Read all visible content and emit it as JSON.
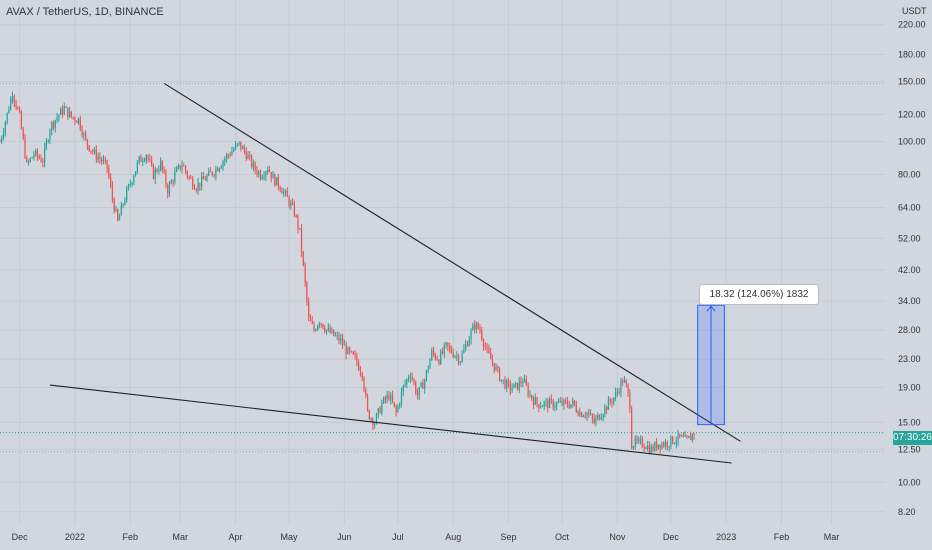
{
  "chart_title": "AVAX / TetherUS, 1D, BINANCE",
  "chart_data": {
    "type": "candlestick",
    "title": "AVAX / TetherUS, 1D, BINANCE",
    "y_unit": "USDT",
    "y_scale": "log",
    "ylim": [
      7.5,
      260
    ],
    "y_ticks": [
      "220.00",
      "180.00",
      "150.00",
      "120.00",
      "100.00",
      "80.00",
      "64.00",
      "52.00",
      "42.00",
      "34.00",
      "28.00",
      "23.00",
      "19.00",
      "15.00",
      "12.50",
      "10.00",
      "8.20"
    ],
    "x_range": [
      "2021-11-20",
      "2023-03-31"
    ],
    "x_ticks": [
      {
        "label": "Dec",
        "date": "2021-12-01"
      },
      {
        "label": "2022",
        "date": "2022-01-01"
      },
      {
        "label": "Feb",
        "date": "2022-02-01"
      },
      {
        "label": "Mar",
        "date": "2022-03-01"
      },
      {
        "label": "Apr",
        "date": "2022-04-01"
      },
      {
        "label": "May",
        "date": "2022-05-01"
      },
      {
        "label": "Jun",
        "date": "2022-06-01"
      },
      {
        "label": "Jul",
        "date": "2022-07-01"
      },
      {
        "label": "Aug",
        "date": "2022-08-01"
      },
      {
        "label": "Sep",
        "date": "2022-09-01"
      },
      {
        "label": "Oct",
        "date": "2022-10-01"
      },
      {
        "label": "Nov",
        "date": "2022-11-01"
      },
      {
        "label": "Dec",
        "date": "2022-12-01"
      },
      {
        "label": "2023",
        "date": "2023-01-01"
      },
      {
        "label": "Feb",
        "date": "2023-02-01"
      },
      {
        "label": "Mar",
        "date": "2023-03-01"
      }
    ],
    "close_path": [
      [
        "2021-11-20",
        100
      ],
      [
        "2021-11-24",
        120
      ],
      [
        "2021-11-27",
        140
      ],
      [
        "2021-12-01",
        118
      ],
      [
        "2021-12-05",
        85
      ],
      [
        "2021-12-09",
        92
      ],
      [
        "2021-12-14",
        88
      ],
      [
        "2021-12-18",
        110
      ],
      [
        "2021-12-22",
        118
      ],
      [
        "2021-12-26",
        125
      ],
      [
        "2021-12-30",
        118
      ],
      [
        "2022-01-03",
        116
      ],
      [
        "2022-01-07",
        100
      ],
      [
        "2022-01-12",
        92
      ],
      [
        "2022-01-16",
        88
      ],
      [
        "2022-01-19",
        84
      ],
      [
        "2022-01-22",
        68
      ],
      [
        "2022-01-25",
        58
      ],
      [
        "2022-01-28",
        66
      ],
      [
        "2022-02-02",
        78
      ],
      [
        "2022-02-06",
        88
      ],
      [
        "2022-02-10",
        92
      ],
      [
        "2022-02-14",
        80
      ],
      [
        "2022-02-18",
        86
      ],
      [
        "2022-02-22",
        72
      ],
      [
        "2022-02-26",
        80
      ],
      [
        "2022-03-02",
        86
      ],
      [
        "2022-03-06",
        78
      ],
      [
        "2022-03-10",
        74
      ],
      [
        "2022-03-15",
        78
      ],
      [
        "2022-03-20",
        82
      ],
      [
        "2022-03-25",
        88
      ],
      [
        "2022-03-30",
        94
      ],
      [
        "2022-04-03",
        98
      ],
      [
        "2022-04-07",
        92
      ],
      [
        "2022-04-11",
        84
      ],
      [
        "2022-04-15",
        80
      ],
      [
        "2022-04-19",
        84
      ],
      [
        "2022-04-22",
        78
      ],
      [
        "2022-04-26",
        74
      ],
      [
        "2022-04-30",
        68
      ],
      [
        "2022-05-04",
        62
      ],
      [
        "2022-05-07",
        54
      ],
      [
        "2022-05-10",
        38
      ],
      [
        "2022-05-12",
        30
      ],
      [
        "2022-05-15",
        28
      ],
      [
        "2022-05-18",
        30
      ],
      [
        "2022-05-22",
        28
      ],
      [
        "2022-05-26",
        27
      ],
      [
        "2022-05-30",
        26
      ],
      [
        "2022-06-03",
        24
      ],
      [
        "2022-06-07",
        23
      ],
      [
        "2022-06-11",
        21
      ],
      [
        "2022-06-14",
        16
      ],
      [
        "2022-06-18",
        15
      ],
      [
        "2022-06-22",
        17
      ],
      [
        "2022-06-26",
        18
      ],
      [
        "2022-06-30",
        16
      ],
      [
        "2022-07-04",
        19
      ],
      [
        "2022-07-08",
        21
      ],
      [
        "2022-07-12",
        18
      ],
      [
        "2022-07-16",
        20
      ],
      [
        "2022-07-20",
        24
      ],
      [
        "2022-07-24",
        23
      ],
      [
        "2022-07-28",
        25
      ],
      [
        "2022-08-01",
        24
      ],
      [
        "2022-08-05",
        23
      ],
      [
        "2022-08-09",
        26
      ],
      [
        "2022-08-13",
        29
      ],
      [
        "2022-08-16",
        28
      ],
      [
        "2022-08-20",
        24
      ],
      [
        "2022-08-24",
        22
      ],
      [
        "2022-08-28",
        20
      ],
      [
        "2022-09-01",
        19
      ],
      [
        "2022-09-05",
        19
      ],
      [
        "2022-09-09",
        20
      ],
      [
        "2022-09-13",
        18
      ],
      [
        "2022-09-17",
        17
      ],
      [
        "2022-09-21",
        17
      ],
      [
        "2022-09-25",
        17
      ],
      [
        "2022-09-29",
        17
      ],
      [
        "2022-10-03",
        17
      ],
      [
        "2022-10-07",
        17
      ],
      [
        "2022-10-11",
        16
      ],
      [
        "2022-10-15",
        16
      ],
      [
        "2022-10-19",
        15
      ],
      [
        "2022-10-23",
        16
      ],
      [
        "2022-10-27",
        17
      ],
      [
        "2022-10-31",
        18
      ],
      [
        "2022-11-04",
        20
      ],
      [
        "2022-11-06",
        19
      ],
      [
        "2022-11-08",
        17
      ],
      [
        "2022-11-09",
        13
      ],
      [
        "2022-11-12",
        13
      ],
      [
        "2022-11-16",
        13
      ],
      [
        "2022-11-20",
        12.5
      ],
      [
        "2022-11-24",
        13
      ],
      [
        "2022-11-28",
        13
      ],
      [
        "2022-12-02",
        13.3
      ],
      [
        "2022-12-06",
        13.5
      ],
      [
        "2022-12-10",
        13.2
      ],
      [
        "2022-12-14",
        14
      ]
    ],
    "trendlines": [
      {
        "name": "upper",
        "points": [
          [
            "2022-02-20",
            148
          ],
          [
            "2023-01-09",
            13.2
          ]
        ]
      },
      {
        "name": "lower",
        "points": [
          [
            "2021-12-18",
            19.3
          ],
          [
            "2023-01-04",
            11.4
          ]
        ]
      }
    ],
    "horizontal_levels": [
      148,
      14,
      12.3
    ],
    "measure": {
      "label": "18.32 (124.06%) 1832",
      "from_date": "2022-12-16",
      "to_date": "2022-12-31",
      "low": 14.77,
      "high": 33.09
    },
    "last_price": 14.0,
    "countdown": "07:30:26",
    "colors": {
      "up": "#26a69a",
      "down": "#ef5350",
      "background": "#d2d6df",
      "measure": "#2962ff"
    }
  }
}
